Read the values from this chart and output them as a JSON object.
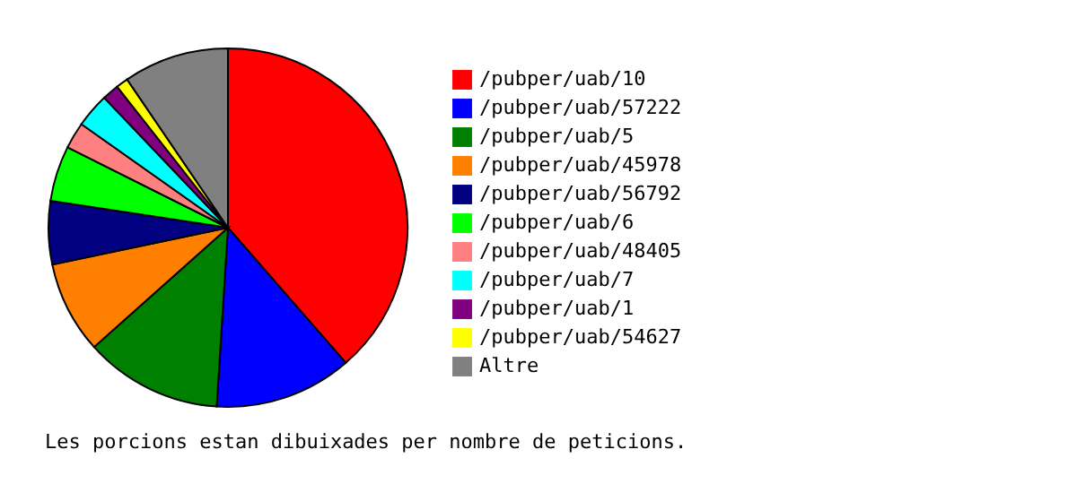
{
  "chart_data": {
    "type": "pie",
    "categories": [
      "/pubper/uab/10",
      "/pubper/uab/57222",
      "/pubper/uab/5",
      "/pubper/uab/45978",
      "/pubper/uab/56792",
      "/pubper/uab/6",
      "/pubper/uab/48405",
      "/pubper/uab/7",
      "/pubper/uab/1",
      "/pubper/uab/54627",
      "Altre"
    ],
    "values": [
      38.6,
      12.4,
      12.4,
      8.3,
      5.7,
      5.0,
      2.4,
      3.1,
      1.5,
      1.1,
      9.5
    ],
    "colors": [
      "#ff0000",
      "#0000ff",
      "#008000",
      "#ff8000",
      "#000080",
      "#00ff00",
      "#ff8080",
      "#00ffff",
      "#800080",
      "#ffff00",
      "#808080"
    ],
    "legend": "right",
    "annotations": [
      "Les porcions estan dibuixades per nombre de peticions."
    ]
  }
}
